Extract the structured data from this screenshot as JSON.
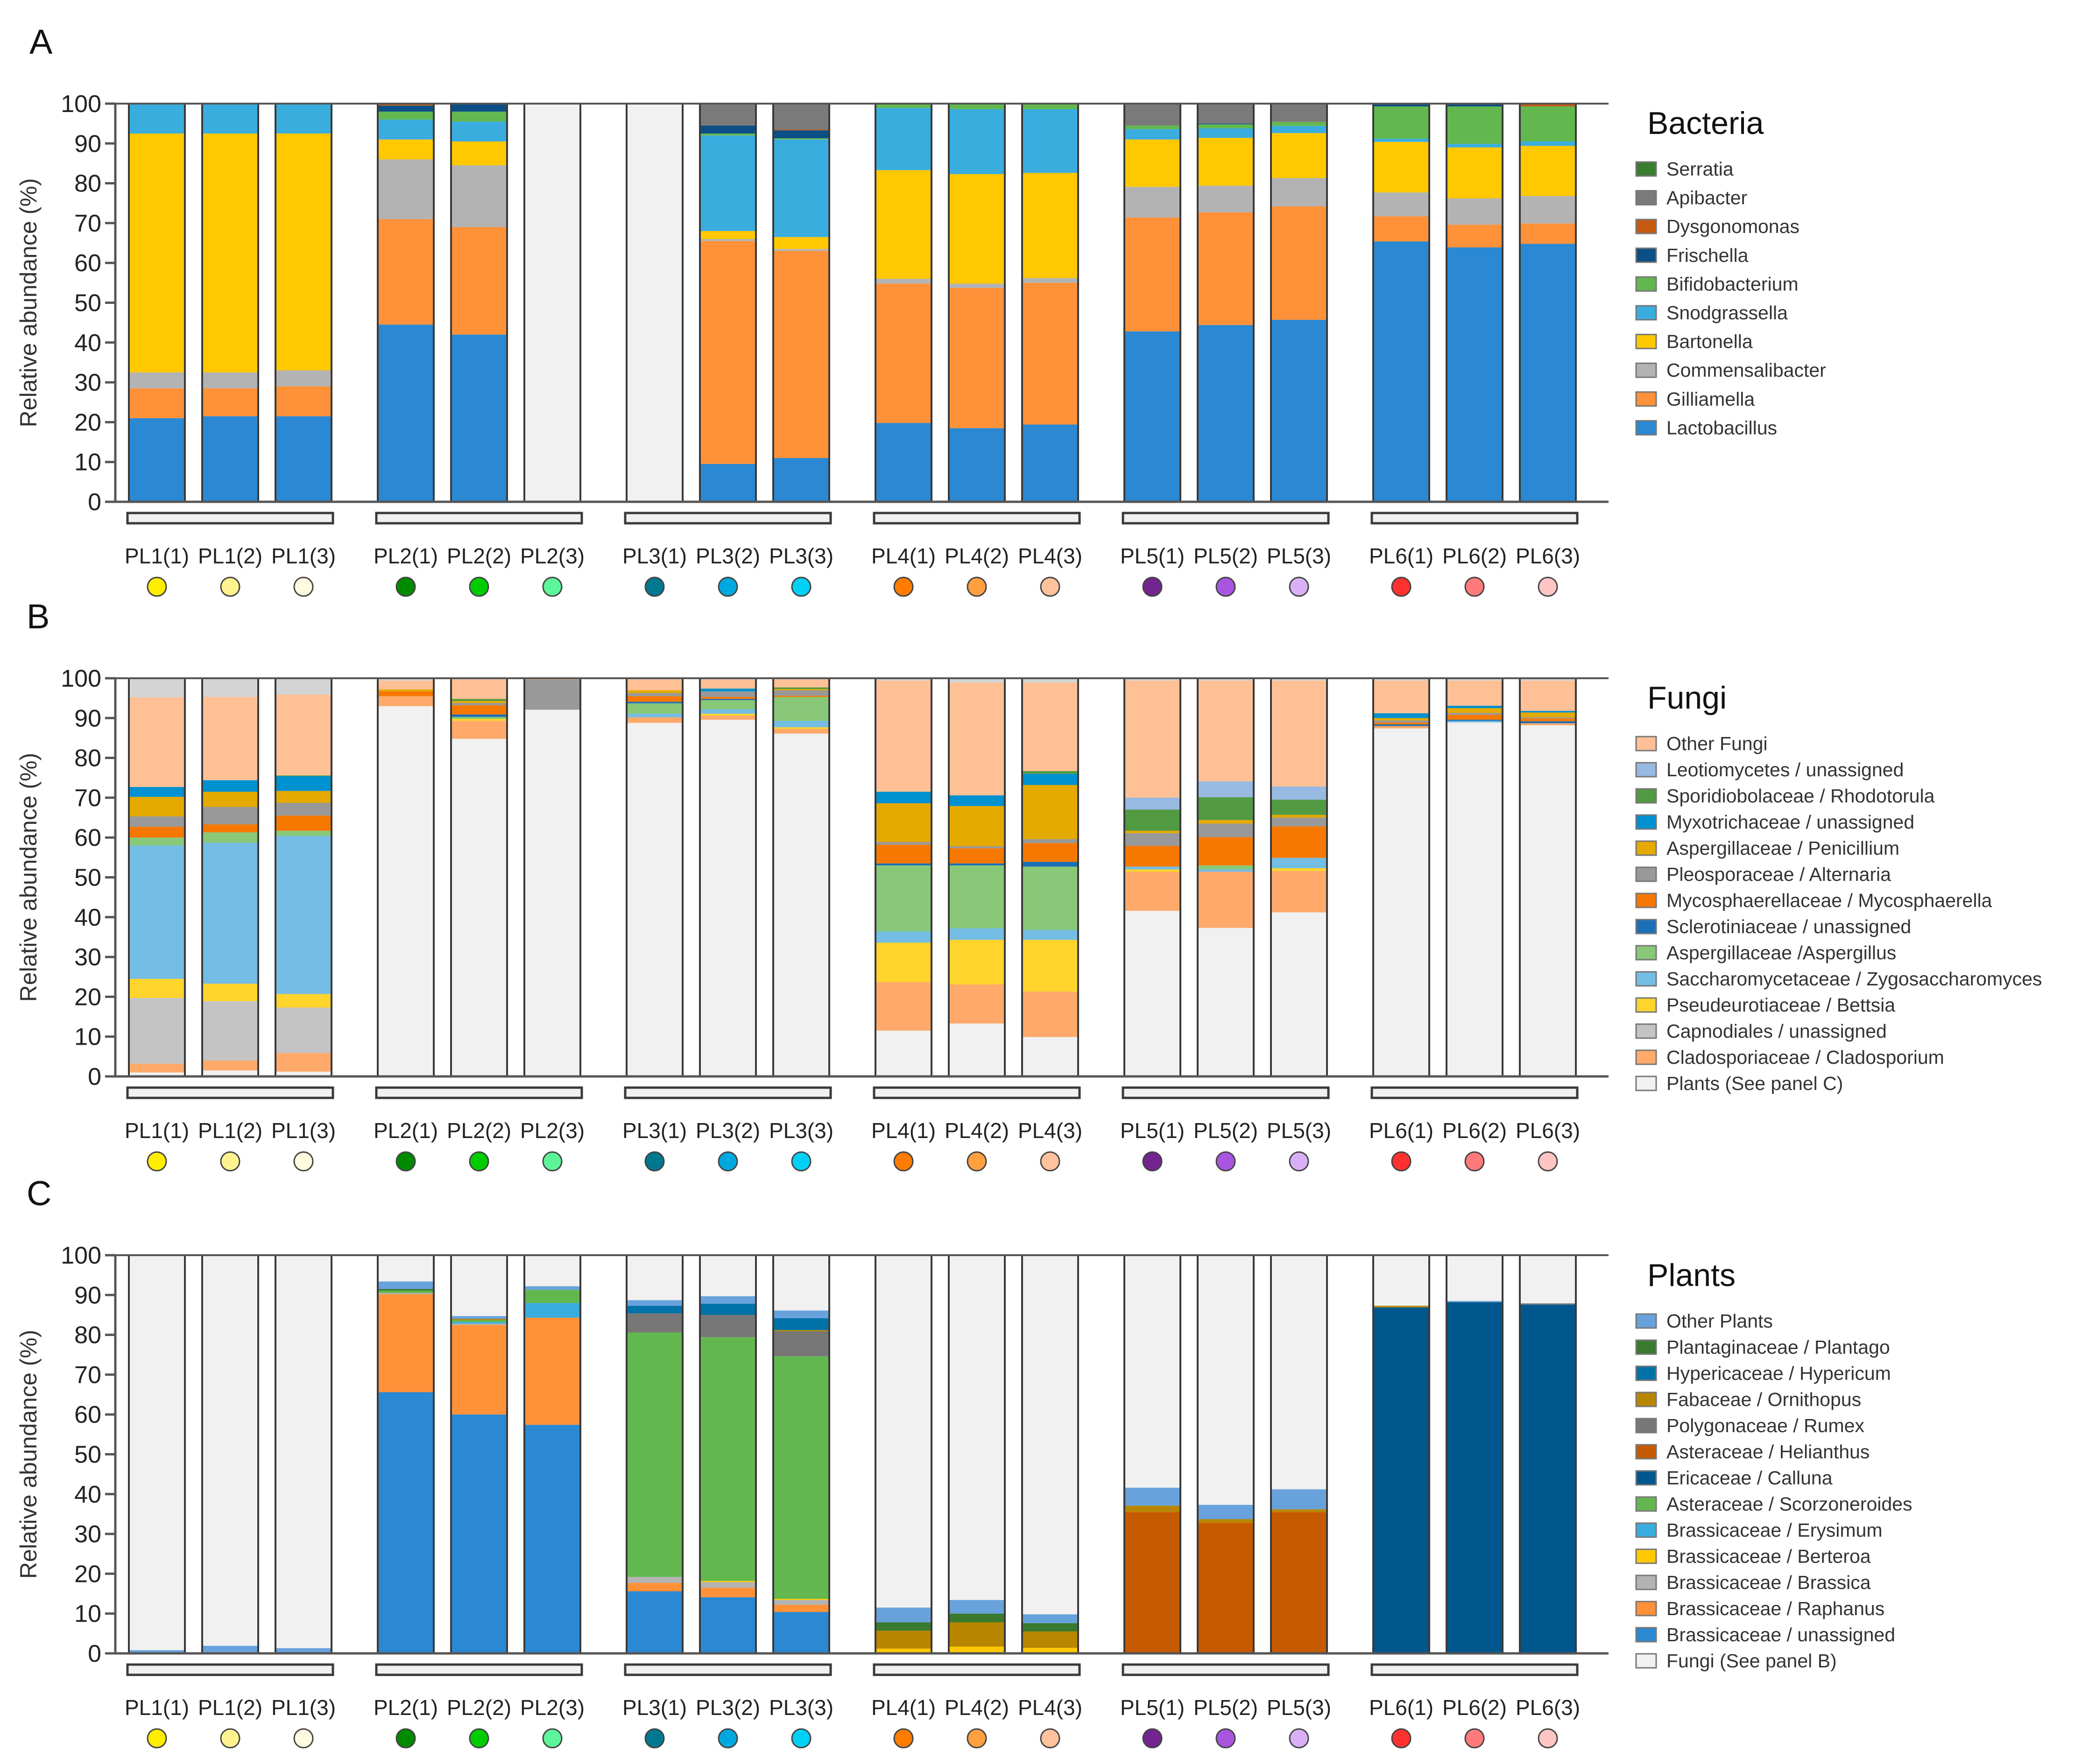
{
  "samples": [
    {
      "label": "PL1(1)",
      "color": "#ffee00"
    },
    {
      "label": "PL1(2)",
      "color": "#fff38f"
    },
    {
      "label": "PL1(3)",
      "color": "#fffbe0"
    },
    {
      "label": "PL2(1)",
      "color": "#008a00"
    },
    {
      "label": "PL2(2)",
      "color": "#00cc00"
    },
    {
      "label": "PL2(3)",
      "color": "#5df59a"
    },
    {
      "label": "PL3(1)",
      "color": "#007890"
    },
    {
      "label": "PL3(2)",
      "color": "#00a8e0"
    },
    {
      "label": "PL3(3)",
      "color": "#00d0f5"
    },
    {
      "label": "PL4(1)",
      "color": "#ff7c00"
    },
    {
      "label": "PL4(2)",
      "color": "#ffa040"
    },
    {
      "label": "PL4(3)",
      "color": "#ffc29c"
    },
    {
      "label": "PL5(1)",
      "color": "#72248f"
    },
    {
      "label": "PL5(2)",
      "color": "#a855e0"
    },
    {
      "label": "PL5(3)",
      "color": "#d9b0f5"
    },
    {
      "label": "PL6(1)",
      "color": "#ff3030"
    },
    {
      "label": "PL6(2)",
      "color": "#ff7a7a"
    },
    {
      "label": "PL6(3)",
      "color": "#ffc4c4"
    }
  ],
  "chart_data": [
    {
      "type": "bar",
      "stacked": true,
      "panel": "A",
      "legend_title": "Bacteria",
      "ylabel": "Relative abundance (%)",
      "ylim": [
        0,
        100
      ],
      "yticks": [
        0,
        10,
        20,
        30,
        40,
        50,
        60,
        70,
        80,
        90,
        100
      ],
      "legend": "right",
      "remainder_color": "#f0f1f0",
      "series": [
        {
          "name": "Serratia",
          "color": "#3a7d30",
          "values": [
            0,
            0,
            0,
            0,
            0,
            0,
            0,
            0,
            0,
            0,
            0,
            0,
            0,
            0,
            0,
            0,
            0,
            0
          ]
        },
        {
          "name": "Apibacter",
          "color": "#7a7a7a",
          "values": [
            0,
            0,
            0,
            0,
            0,
            0,
            0,
            5.5,
            6.5,
            0,
            0,
            0,
            5.5,
            5,
            4.6,
            0,
            0,
            0
          ]
        },
        {
          "name": "Dysgonomonas",
          "color": "#c55a11",
          "values": [
            0,
            0,
            0,
            0.5,
            0,
            0,
            0,
            0,
            0.2,
            0,
            0,
            0,
            0,
            0,
            0,
            0,
            0,
            0.7
          ]
        },
        {
          "name": "Frischella",
          "color": "#0b4f86",
          "values": [
            0,
            0,
            0,
            1.5,
            2,
            0,
            0,
            2,
            2,
            0,
            0,
            0,
            0,
            0.2,
            0,
            0.7,
            0.7,
            0
          ]
        },
        {
          "name": "Bifidobacterium",
          "color": "#62b84f",
          "values": [
            0,
            0,
            0,
            2,
            2.5,
            0,
            0,
            0.5,
            0.3,
            1.1,
            1.4,
            1.4,
            0.9,
            1,
            1,
            8.1,
            9.4,
            8.8
          ]
        },
        {
          "name": "Snodgrassella",
          "color": "#3aaddf",
          "values": [
            7.5,
            7.5,
            7.5,
            5,
            5,
            0,
            0,
            24,
            24.5,
            15.6,
            16.3,
            16,
            2.6,
            2.4,
            1.8,
            0.8,
            0.9,
            1.1
          ]
        },
        {
          "name": "Bartonella",
          "color": "#ffc800",
          "values": [
            60,
            60,
            59.5,
            5,
            6,
            0,
            0,
            2,
            3,
            27.3,
            27.5,
            26.4,
            11.9,
            12,
            11.3,
            12.7,
            12.8,
            12.6
          ]
        },
        {
          "name": "Commensalibacter",
          "color": "#b3b3b3",
          "values": [
            4,
            4,
            4,
            15,
            15.5,
            0,
            0,
            0.5,
            0.5,
            1.2,
            1.1,
            1.2,
            7.7,
            6.7,
            7.1,
            6,
            6.6,
            6.9
          ]
        },
        {
          "name": "Gilliamella",
          "color": "#ff9138",
          "values": [
            7.5,
            7,
            7.5,
            26.5,
            27,
            0,
            0,
            56,
            52,
            35,
            35.2,
            35.6,
            28.6,
            28.3,
            28.5,
            6.3,
            5.7,
            5.1
          ]
        },
        {
          "name": "Lactobacillus",
          "color": "#2b88d2",
          "values": [
            21,
            21.5,
            21.5,
            44.5,
            42,
            0,
            0,
            9.5,
            11,
            19.8,
            18.5,
            19.4,
            42.8,
            44.4,
            45.7,
            65.4,
            63.9,
            64.8
          ]
        }
      ]
    },
    {
      "type": "bar",
      "stacked": true,
      "panel": "B",
      "legend_title": "Fungi",
      "ylabel": "Relative abundance (%)",
      "ylim": [
        0,
        100
      ],
      "yticks": [
        0,
        10,
        20,
        30,
        40,
        50,
        60,
        70,
        80,
        90,
        100
      ],
      "legend": "right",
      "remainder_color": "#d4d4d4",
      "series": [
        {
          "name": "Other Fungi",
          "color": "#ffc095",
          "values": [
            22.5,
            20.9,
            20.3,
            2.2,
            4.9,
            0.3,
            2.7,
            2.3,
            2,
            27.9,
            28.3,
            22.2,
            29.4,
            25.3,
            26.6,
            8.2,
            6.3,
            7.6
          ]
        },
        {
          "name": "Leotiomycetes / unassigned",
          "color": "#97b9e2",
          "values": [
            0,
            0,
            0,
            0,
            0,
            0,
            0,
            0,
            0,
            0,
            0,
            0,
            3,
            4,
            3.3,
            0,
            0,
            0
          ]
        },
        {
          "name": "Sporidiobolaceae / Rhodotorula",
          "color": "#529a42",
          "values": [
            0,
            0,
            0.2,
            0,
            0.5,
            0,
            0,
            0,
            0.4,
            0,
            0,
            0.7,
            5.3,
            5.7,
            3.8,
            0,
            0,
            0
          ]
        },
        {
          "name": "Myxotrichaceae / unassigned",
          "color": "#0091d0",
          "values": [
            2.5,
            2.9,
            3.7,
            0,
            0,
            0,
            0,
            0.7,
            0,
            2.9,
            2.7,
            2.8,
            0,
            0,
            0,
            1.2,
            0.6,
            0.4
          ]
        },
        {
          "name": "Aspergillaceae / Penicillium",
          "color": "#e5aa00",
          "values": [
            4.9,
            3.8,
            3,
            0.5,
            0.5,
            0,
            0.7,
            0,
            0.3,
            9.7,
            10.1,
            13.6,
            0.6,
            0.9,
            0.7,
            0.6,
            1.2,
            1.2
          ]
        },
        {
          "name": "Pleosporaceae / Alternaria",
          "color": "#999999",
          "values": [
            2.6,
            4.4,
            3.2,
            0,
            0.6,
            7.6,
            0.8,
            1.4,
            1.4,
            0.7,
            0.5,
            1,
            3.2,
            3.4,
            2.2,
            0.5,
            0.5,
            0.3
          ]
        },
        {
          "name": "Mycosphaerellaceae / Mycosphaerella",
          "color": "#f77800",
          "values": [
            2.7,
            2,
            3.8,
            1.2,
            2.3,
            0,
            1.4,
            0.5,
            0.3,
            4.7,
            3.8,
            4.7,
            5.2,
            7.1,
            7.9,
            0.5,
            1.2,
            0.7
          ]
        },
        {
          "name": "Sclerotiniaceae / unassigned",
          "color": "#1a6fb5",
          "values": [
            0,
            0,
            0,
            0,
            0.6,
            0,
            0.4,
            0.3,
            0,
            0.5,
            0.5,
            1.2,
            0,
            0,
            0,
            0.4,
            0.3,
            0.5
          ]
        },
        {
          "name": "Aspergillaceae /Aspergillus",
          "color": "#88c878",
          "values": [
            2,
            2.6,
            1.3,
            0,
            0.5,
            0,
            2.6,
            2.3,
            6,
            16.6,
            15.8,
            15.9,
            0,
            1,
            0,
            0,
            0,
            0
          ]
        },
        {
          "name": "Saccharomycetaceae / Zygosaccharomyces",
          "color": "#74bde4",
          "values": [
            33.5,
            35.4,
            39.7,
            0,
            0,
            0,
            0.9,
            1.1,
            1.6,
            2.8,
            2.9,
            2.5,
            0.7,
            0.6,
            2.6,
            0,
            0.4,
            0
          ]
        },
        {
          "name": "Pseudeurotiaceae / Bettsia",
          "color": "#ffd42c",
          "values": [
            4.8,
            4.4,
            3.4,
            0,
            0.5,
            0,
            0,
            0.5,
            0.4,
            9.9,
            11.2,
            13,
            0.6,
            0,
            0.7,
            0,
            0,
            0
          ]
        },
        {
          "name": "Capnodiales / unassigned",
          "color": "#c4c4c4",
          "values": [
            16.5,
            14.9,
            11.4,
            0,
            0,
            0,
            0,
            0,
            0,
            0,
            0,
            0,
            0,
            0,
            0,
            0,
            0,
            0
          ]
        },
        {
          "name": "Cladosporiaceae / Cladosporium",
          "color": "#ffaa6a",
          "values": [
            2.2,
            2.5,
            4.7,
            2.5,
            4.5,
            0,
            1.4,
            1,
            1.2,
            12.2,
            9.8,
            11.4,
            9.8,
            14.1,
            10.4,
            0.6,
            0,
            0.5
          ]
        },
        {
          "name": "Plants (See panel C)",
          "color": "#f0f1f0",
          "values": [
            1,
            1.5,
            1.2,
            93,
            84.8,
            92.1,
            88.8,
            89.6,
            86.1,
            11.5,
            13.3,
            9.9,
            41.6,
            37.3,
            41.2,
            87.4,
            88.9,
            88.2
          ]
        }
      ]
    },
    {
      "type": "bar",
      "stacked": true,
      "panel": "C",
      "legend_title": "Plants",
      "ylabel": "Relative abundance (%)",
      "ylim": [
        0,
        100
      ],
      "yticks": [
        0,
        10,
        20,
        30,
        40,
        50,
        60,
        70,
        80,
        90,
        100
      ],
      "legend": "right",
      "remainder_color": "#f0f1f0",
      "series": [
        {
          "name": "Other Plants",
          "color": "#68a2dc",
          "values": [
            0.8,
            1.6,
            1.3,
            1.9,
            0.7,
            0.9,
            1.4,
            1.9,
            1.9,
            3.7,
            3.4,
            2.2,
            4.5,
            3.6,
            5,
            0,
            0.3,
            0
          ]
        },
        {
          "name": "Plantaginaceae / Plantago",
          "color": "#3a7a2e",
          "values": [
            0,
            0,
            0,
            0.4,
            0,
            0,
            0,
            0,
            0,
            2.1,
            2.2,
            2.1,
            0,
            0,
            0,
            0,
            0,
            0
          ]
        },
        {
          "name": "Hypericaceae / Hypericum",
          "color": "#0072a8",
          "values": [
            0,
            0,
            0,
            0,
            0,
            0,
            1.9,
            2.8,
            3,
            0,
            0,
            0,
            0,
            0,
            0,
            0,
            0,
            0
          ]
        },
        {
          "name": "Fabaceae / Ornithopus",
          "color": "#b88600",
          "values": [
            0,
            0.3,
            0,
            0,
            0.3,
            0,
            0,
            0,
            0.3,
            4.5,
            6.1,
            4.1,
            1.6,
            0.9,
            0.7,
            0.4,
            0,
            0
          ]
        },
        {
          "name": "Polygonaceae / Rumex",
          "color": "#777777",
          "values": [
            0,
            0,
            0,
            0,
            0,
            0,
            4.8,
            5.6,
            6.3,
            0,
            0,
            0,
            0,
            0,
            0,
            0,
            0,
            0.3
          ]
        },
        {
          "name": "Asteraceae / Helianthus",
          "color": "#c55a00",
          "values": [
            0,
            0,
            0,
            0,
            0,
            0,
            0,
            0,
            0,
            0,
            0,
            0,
            35.5,
            32.8,
            35.5,
            0,
            0,
            0
          ]
        },
        {
          "name": "Ericaceae / Calluna",
          "color": "#00578e",
          "values": [
            0,
            0,
            0,
            0,
            0,
            0,
            0,
            0,
            0,
            0,
            0,
            0,
            0,
            0,
            0,
            86.9,
            88.2,
            87.6
          ]
        },
        {
          "name": "Asteraceae / Scorzoneroides",
          "color": "#62b84f",
          "values": [
            0,
            0,
            0,
            0.6,
            0.5,
            3.3,
            61.4,
            61.2,
            60.9,
            0,
            0,
            0,
            0,
            0,
            0,
            0,
            0,
            0
          ]
        },
        {
          "name": "Brassicaceae / Erysimum",
          "color": "#3aaddf",
          "values": [
            0,
            0,
            0,
            0,
            0.4,
            3.7,
            0,
            0,
            0,
            0,
            0,
            0,
            0,
            0,
            0,
            0,
            0,
            0
          ]
        },
        {
          "name": "Brassicaceae / Berteroa",
          "color": "#ffc800",
          "values": [
            0,
            0,
            0,
            0,
            0,
            0,
            0,
            0.3,
            0.3,
            1.2,
            1.7,
            1.4,
            0,
            0,
            0,
            0,
            0,
            0
          ]
        },
        {
          "name": "Brassicaceae / Brassica",
          "color": "#b3b3b3",
          "values": [
            0,
            0,
            0,
            0.3,
            0.3,
            0,
            1.5,
            1.4,
            1.2,
            0,
            0,
            0,
            0,
            0,
            0,
            0,
            0,
            0
          ]
        },
        {
          "name": "Brassicaceae / Raphanus",
          "color": "#ff9138",
          "values": [
            0,
            0,
            0,
            24.6,
            22.5,
            26.9,
            2.1,
            2.4,
            1.8,
            0,
            0,
            0,
            0,
            0,
            0,
            0,
            0,
            0
          ]
        },
        {
          "name": "Brassicaceae / unassigned",
          "color": "#2b88d2",
          "values": [
            0,
            0,
            0,
            65.6,
            60,
            57.4,
            15.6,
            14.1,
            10.4,
            0,
            0,
            0,
            0,
            0,
            0,
            0,
            0,
            0
          ]
        },
        {
          "name": "Fungi (See panel B)",
          "color": "#f0f1f0",
          "remainder": true
        }
      ]
    }
  ]
}
